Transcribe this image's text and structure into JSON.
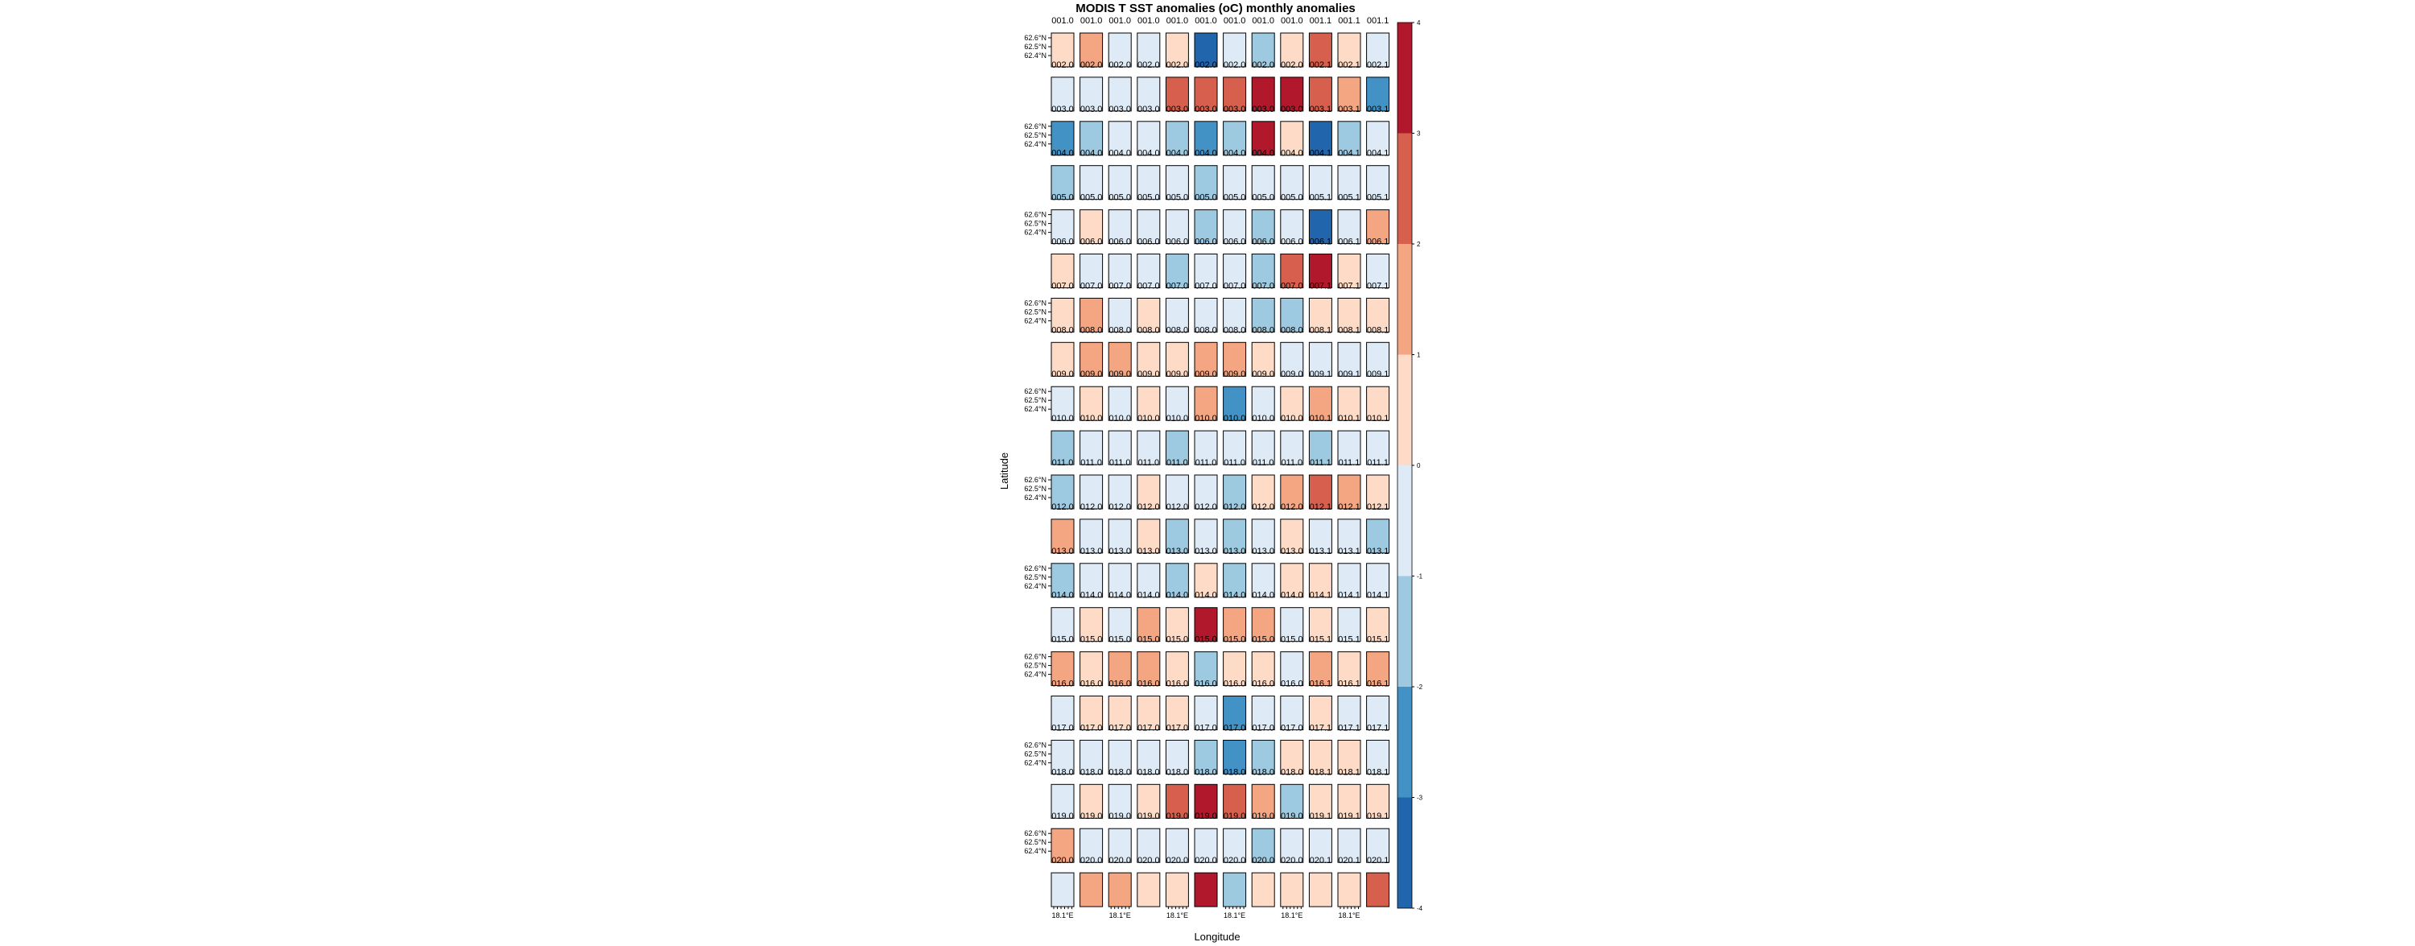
{
  "chart_data": {
    "type": "heatmap",
    "title": "MODIS T SST anomalies (oC) monthly anomalies",
    "xlabel": "Longitude",
    "ylabel": "Latitude",
    "lat_tick_labels": [
      "62.6°N",
      "62.5°N",
      "62.4°N"
    ],
    "lon_tick_label": "18.1°E",
    "colorbar": {
      "range": [
        -4,
        4
      ],
      "ticks": [
        4,
        3,
        2,
        1,
        0,
        -1,
        -2,
        -3,
        -4
      ],
      "tick_labels": [
        "4",
        "3",
        "2",
        "1",
        "0",
        "-1",
        "-2",
        "-3",
        "-4"
      ],
      "bins": [
        {
          "from": 3,
          "to": 4,
          "color": "#b2182b"
        },
        {
          "from": 2,
          "to": 3,
          "color": "#d6604d"
        },
        {
          "from": 1,
          "to": 2,
          "color": "#f4a582"
        },
        {
          "from": 0,
          "to": 1,
          "color": "#fddbc7"
        },
        {
          "from": -1,
          "to": 0,
          "color": "#deebf7"
        },
        {
          "from": -2,
          "to": -1,
          "color": "#9ecae1"
        },
        {
          "from": -3,
          "to": -2,
          "color": "#4292c6"
        },
        {
          "from": -4,
          "to": -3,
          "color": "#2166ac"
        }
      ]
    },
    "panel_columns": 12,
    "panel_rows": 20,
    "panels": [
      {
        "row": 1,
        "strip_labels": [
          "001.0",
          "001.0",
          "001.0",
          "001.0",
          "001.0",
          "001.0",
          "001.0",
          "001.0",
          "001.0",
          "001.1",
          "001.1",
          "001.1"
        ],
        "anomaly": [
          0.5,
          1.5,
          -0.5,
          -0.5,
          0.5,
          -3.5,
          -0.5,
          -1.5,
          0.5,
          2.5,
          0.5,
          -0.5
        ]
      },
      {
        "row": 2,
        "strip_labels": [
          "002.0",
          "002.0",
          "002.0",
          "002.0",
          "002.0",
          "002.0",
          "002.0",
          "002.0",
          "002.0",
          "002.1",
          "002.1",
          "002.1"
        ],
        "anomaly": [
          -0.5,
          -0.5,
          -0.5,
          -0.5,
          2.5,
          2.5,
          2.5,
          3.5,
          3.5,
          2.5,
          1.5,
          -2.5
        ]
      },
      {
        "row": 3,
        "strip_labels": [
          "003.0",
          "003.0",
          "003.0",
          "003.0",
          "003.0",
          "003.0",
          "003.0",
          "003.0",
          "003.0",
          "003.1",
          "003.1",
          "003.1"
        ],
        "anomaly": [
          -2.5,
          -1.5,
          -0.5,
          -0.5,
          -1.5,
          -2.5,
          -1.5,
          3.5,
          0.5,
          -3.5,
          -1.5,
          -0.5
        ]
      },
      {
        "row": 4,
        "strip_labels": [
          "004.0",
          "004.0",
          "004.0",
          "004.0",
          "004.0",
          "004.0",
          "004.0",
          "004.0",
          "004.0",
          "004.1",
          "004.1",
          "004.1"
        ],
        "anomaly": [
          -1.5,
          -0.5,
          -0.5,
          -0.5,
          -0.5,
          -1.5,
          -0.5,
          -0.5,
          -0.5,
          -0.5,
          -0.5,
          -0.5
        ]
      },
      {
        "row": 5,
        "strip_labels": [
          "005.0",
          "005.0",
          "005.0",
          "005.0",
          "005.0",
          "005.0",
          "005.0",
          "005.0",
          "005.0",
          "005.1",
          "005.1",
          "005.1"
        ],
        "anomaly": [
          -0.5,
          0.5,
          -0.5,
          -0.5,
          -0.5,
          -1.5,
          -0.5,
          -1.5,
          -0.5,
          -3.5,
          -0.5,
          1.5
        ]
      },
      {
        "row": 6,
        "strip_labels": [
          "006.0",
          "006.0",
          "006.0",
          "006.0",
          "006.0",
          "006.0",
          "006.0",
          "006.0",
          "006.0",
          "006.1",
          "006.1",
          "006.1"
        ],
        "anomaly": [
          0.5,
          -0.5,
          -0.5,
          -0.5,
          -1.5,
          -0.5,
          -0.5,
          -1.5,
          2.5,
          3.5,
          0.5,
          -0.5
        ]
      },
      {
        "row": 7,
        "strip_labels": [
          "007.0",
          "007.0",
          "007.0",
          "007.0",
          "007.0",
          "007.0",
          "007.0",
          "007.0",
          "007.0",
          "007.1",
          "007.1",
          "007.1"
        ],
        "anomaly": [
          0.5,
          1.5,
          -0.5,
          0.5,
          -0.5,
          -0.5,
          -0.5,
          -1.5,
          -1.5,
          0.5,
          0.5,
          0.5
        ]
      },
      {
        "row": 8,
        "strip_labels": [
          "008.0",
          "008.0",
          "008.0",
          "008.0",
          "008.0",
          "008.0",
          "008.0",
          "008.0",
          "008.0",
          "008.1",
          "008.1",
          "008.1"
        ],
        "anomaly": [
          0.5,
          1.5,
          1.5,
          0.5,
          0.5,
          1.5,
          1.5,
          0.5,
          -0.5,
          -0.5,
          -0.5,
          -0.5
        ]
      },
      {
        "row": 9,
        "strip_labels": [
          "009.0",
          "009.0",
          "009.0",
          "009.0",
          "009.0",
          "009.0",
          "009.0",
          "009.0",
          "009.0",
          "009.1",
          "009.1",
          "009.1"
        ],
        "anomaly": [
          -0.5,
          0.5,
          -0.5,
          0.5,
          -0.5,
          1.5,
          -2.5,
          -0.5,
          0.5,
          1.5,
          0.5,
          0.5
        ]
      },
      {
        "row": 10,
        "strip_labels": [
          "010.0",
          "010.0",
          "010.0",
          "010.0",
          "010.0",
          "010.0",
          "010.0",
          "010.0",
          "010.0",
          "010.1",
          "010.1",
          "010.1"
        ],
        "anomaly": [
          -1.5,
          -0.5,
          -0.5,
          -0.5,
          -1.5,
          -0.5,
          -0.5,
          -0.5,
          -0.5,
          -1.5,
          -0.5,
          -0.5
        ]
      },
      {
        "row": 11,
        "strip_labels": [
          "011.0",
          "011.0",
          "011.0",
          "011.0",
          "011.0",
          "011.0",
          "011.0",
          "011.0",
          "011.0",
          "011.1",
          "011.1",
          "011.1"
        ],
        "anomaly": [
          -1.5,
          -0.5,
          -0.5,
          0.5,
          -0.5,
          -0.5,
          -1.5,
          0.5,
          1.5,
          2.5,
          1.5,
          0.5
        ]
      },
      {
        "row": 12,
        "strip_labels": [
          "012.0",
          "012.0",
          "012.0",
          "012.0",
          "012.0",
          "012.0",
          "012.0",
          "012.0",
          "012.0",
          "012.1",
          "012.1",
          "012.1"
        ],
        "anomaly": [
          1.5,
          -0.5,
          -0.5,
          0.5,
          -1.5,
          -0.5,
          -1.5,
          -0.5,
          0.5,
          -0.5,
          -0.5,
          -1.5
        ]
      },
      {
        "row": 13,
        "strip_labels": [
          "013.0",
          "013.0",
          "013.0",
          "013.0",
          "013.0",
          "013.0",
          "013.0",
          "013.0",
          "013.0",
          "013.1",
          "013.1",
          "013.1"
        ],
        "anomaly": [
          -1.5,
          -0.5,
          -0.5,
          -0.5,
          -1.5,
          0.5,
          -1.5,
          -0.5,
          0.5,
          0.5,
          -0.5,
          -0.5
        ]
      },
      {
        "row": 14,
        "strip_labels": [
          "014.0",
          "014.0",
          "014.0",
          "014.0",
          "014.0",
          "014.0",
          "014.0",
          "014.0",
          "014.0",
          "014.1",
          "014.1",
          "014.1"
        ],
        "anomaly": [
          -0.5,
          0.5,
          -0.5,
          1.5,
          0.5,
          3.5,
          1.5,
          1.5,
          -0.5,
          0.5,
          -0.5,
          0.5
        ]
      },
      {
        "row": 15,
        "strip_labels": [
          "015.0",
          "015.0",
          "015.0",
          "015.0",
          "015.0",
          "015.0",
          "015.0",
          "015.0",
          "015.0",
          "015.1",
          "015.1",
          "015.1"
        ],
        "anomaly": [
          1.5,
          0.5,
          1.5,
          1.5,
          0.5,
          -1.5,
          0.5,
          0.5,
          -0.5,
          1.5,
          0.5,
          1.5
        ]
      },
      {
        "row": 16,
        "strip_labels": [
          "016.0",
          "016.0",
          "016.0",
          "016.0",
          "016.0",
          "016.0",
          "016.0",
          "016.0",
          "016.0",
          "016.1",
          "016.1",
          "016.1"
        ],
        "anomaly": [
          -0.5,
          0.5,
          0.5,
          0.5,
          0.5,
          -0.5,
          -2.5,
          -0.5,
          -0.5,
          0.5,
          -0.5,
          -0.5
        ]
      },
      {
        "row": 17,
        "strip_labels": [
          "017.0",
          "017.0",
          "017.0",
          "017.0",
          "017.0",
          "017.0",
          "017.0",
          "017.0",
          "017.0",
          "017.1",
          "017.1",
          "017.1"
        ],
        "anomaly": [
          -0.5,
          -0.5,
          -0.5,
          -0.5,
          -0.5,
          -1.5,
          -2.5,
          -1.5,
          0.5,
          0.5,
          0.5,
          -0.5
        ]
      },
      {
        "row": 18,
        "strip_labels": [
          "018.0",
          "018.0",
          "018.0",
          "018.0",
          "018.0",
          "018.0",
          "018.0",
          "018.0",
          "018.0",
          "018.1",
          "018.1",
          "018.1"
        ],
        "anomaly": [
          -0.5,
          0.5,
          -0.5,
          0.5,
          2.5,
          3.5,
          2.5,
          1.5,
          -1.5,
          0.5,
          0.5,
          0.5
        ]
      },
      {
        "row": 19,
        "strip_labels": [
          "019.0",
          "019.0",
          "019.0",
          "019.0",
          "019.0",
          "019.0",
          "019.0",
          "019.0",
          "019.0",
          "019.1",
          "019.1",
          "019.1"
        ],
        "anomaly": [
          1.5,
          -0.5,
          -0.5,
          -0.5,
          -0.5,
          -0.5,
          -0.5,
          -1.5,
          -0.5,
          -0.5,
          -0.5,
          -0.5
        ]
      },
      {
        "row": 20,
        "strip_labels": [
          "020.0",
          "020.0",
          "020.0",
          "020.0",
          "020.0",
          "020.0",
          "020.0",
          "020.0",
          "020.0",
          "020.1",
          "020.1",
          "020.1"
        ],
        "anomaly": [
          -0.5,
          1.5,
          1.5,
          0.5,
          0.5,
          3.5,
          -1.5,
          0.5,
          0.5,
          0.5,
          0.5,
          2.5
        ]
      }
    ]
  }
}
